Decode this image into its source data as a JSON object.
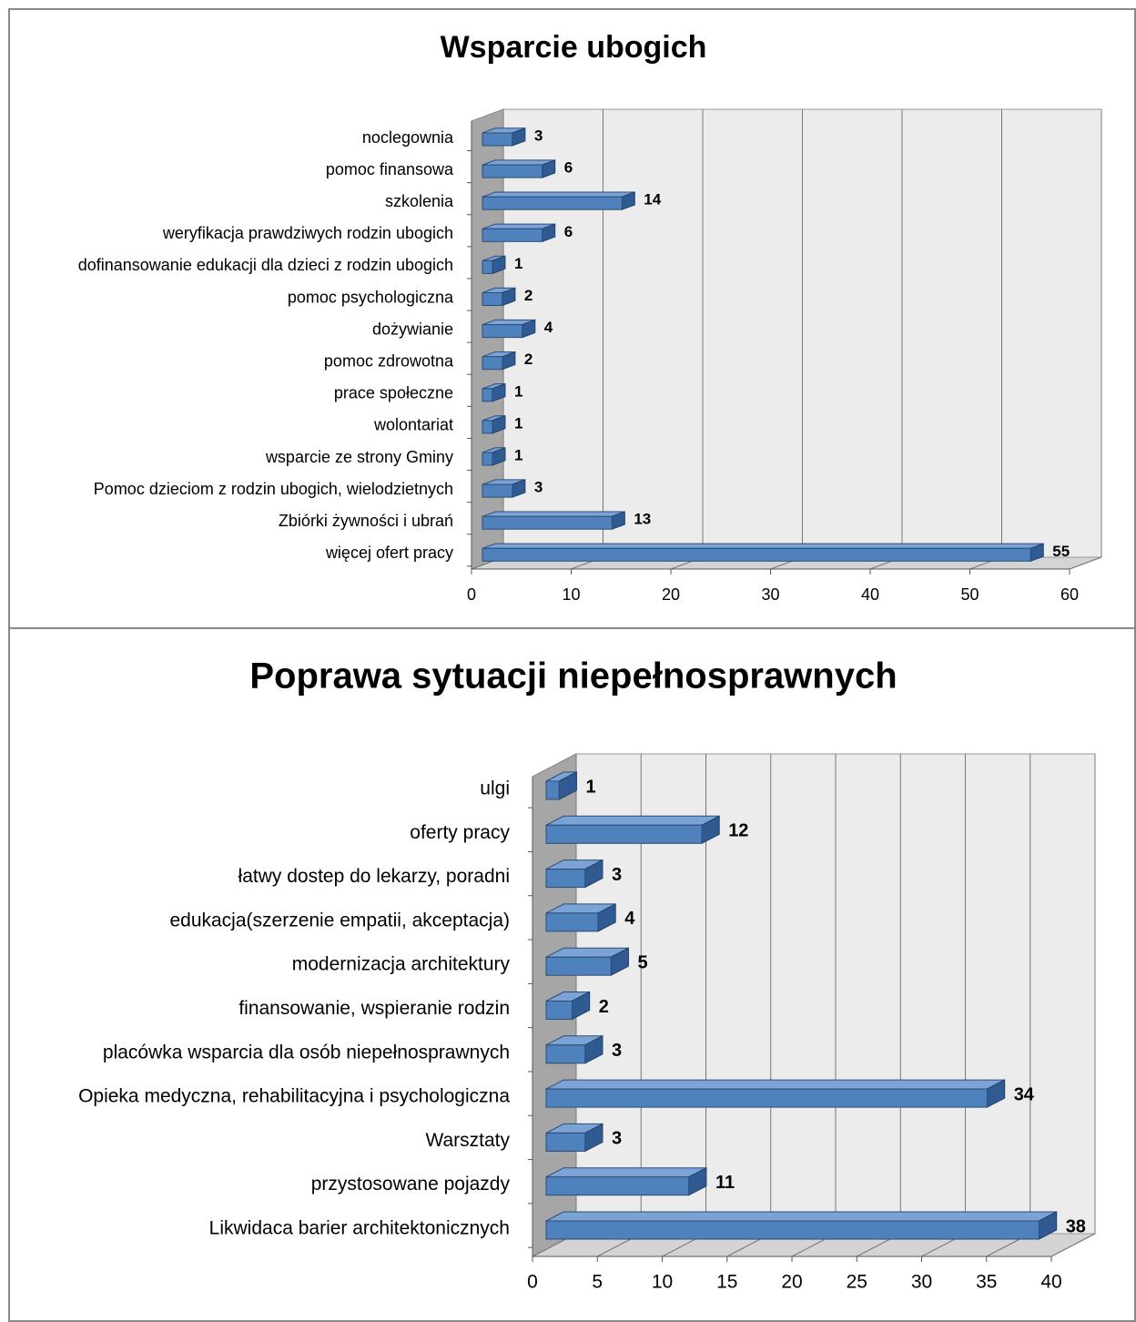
{
  "chart_data": [
    {
      "type": "bar",
      "orientation": "horizontal",
      "title": "Wsparcie ubogich",
      "categories": [
        "noclegownia",
        "pomoc finansowa",
        "szkolenia",
        "weryfikacja prawdziwych rodzin ubogich",
        "dofinansowanie edukacji dla dzieci z rodzin ubogich",
        "pomoc psychologiczna",
        "dożywianie",
        "pomoc zdrowotna",
        "prace społeczne",
        "wolontariat",
        "wsparcie ze strony Gminy",
        "Pomoc dzieciom z rodzin ubogich, wielodzietnych",
        "Zbiórki żywności i ubrań",
        "więcej ofert pracy"
      ],
      "values": [
        3,
        6,
        14,
        6,
        1,
        2,
        4,
        2,
        1,
        1,
        1,
        3,
        13,
        55
      ],
      "color": "#4f81bd",
      "xlim": [
        0,
        60
      ],
      "xticks": [
        0,
        10,
        20,
        30,
        40,
        50,
        60
      ],
      "grid": true
    },
    {
      "type": "bar",
      "orientation": "horizontal",
      "title": "Poprawa sytuacji niepełnosprawnych",
      "categories": [
        "ulgi",
        "oferty pracy",
        "łatwy dostep do lekarzy, poradni",
        "edukacja(szerzenie empatii, akceptacja)",
        "modernizacja architektury",
        "finansowanie, wspieranie rodzin",
        "placówka wsparcia dla osób niepełnosprawnych",
        "Opieka medyczna, rehabilitacyjna i psychologiczna",
        "Warsztaty",
        "przystosowane pojazdy",
        "Likwidaca barier architektonicznych"
      ],
      "values": [
        1,
        12,
        3,
        4,
        5,
        2,
        3,
        34,
        3,
        11,
        38
      ],
      "color": "#4f81bd",
      "xlim": [
        0,
        40
      ],
      "xticks": [
        0,
        5,
        10,
        15,
        20,
        25,
        30,
        35,
        40
      ],
      "grid": true
    }
  ]
}
